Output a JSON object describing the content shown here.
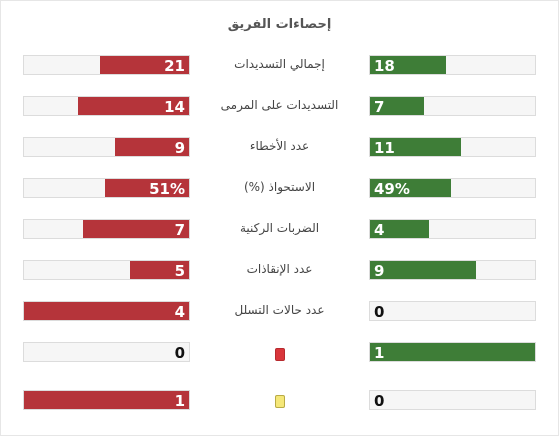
{
  "title": "إحصاءات الفريق",
  "colors": {
    "home": "#3e7d37",
    "away": "#b5343a",
    "track": "#f6f6f6"
  },
  "rows": [
    {
      "label": "إجمالي التسديدات",
      "away": "21",
      "home": "18",
      "away_fill": 0.54,
      "home_fill": 0.46
    },
    {
      "label": "التسديدات على المرمى",
      "away": "14",
      "home": "7",
      "away_fill": 0.67,
      "home_fill": 0.33
    },
    {
      "label": "عدد الأخطاء",
      "away": "9",
      "home": "11",
      "away_fill": 0.45,
      "home_fill": 0.55
    },
    {
      "label": "الاستحواذ (%)",
      "away": "51%",
      "home": "49%",
      "away_fill": 0.51,
      "home_fill": 0.49
    },
    {
      "label": "الضربات الركنية",
      "away": "7",
      "home": "4",
      "away_fill": 0.64,
      "home_fill": 0.36
    },
    {
      "label": "عدد الإنقاذات",
      "away": "5",
      "home": "9",
      "away_fill": 0.36,
      "home_fill": 0.64
    },
    {
      "label": "عدد حالات التسلل",
      "away": "4",
      "home": "0",
      "away_fill": 1.0,
      "home_fill": 0.0
    },
    {
      "label": "",
      "icon": "red-card-icon",
      "away": "0",
      "home": "1",
      "away_fill": 0.0,
      "home_fill": 1.0
    },
    {
      "label": "",
      "icon": "yellow-card-icon",
      "away": "1",
      "home": "0",
      "away_fill": 1.0,
      "home_fill": 0.0
    }
  ]
}
